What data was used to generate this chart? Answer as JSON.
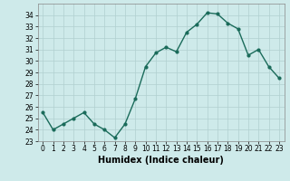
{
  "x": [
    0,
    1,
    2,
    3,
    4,
    5,
    6,
    7,
    8,
    9,
    10,
    11,
    12,
    13,
    14,
    15,
    16,
    17,
    18,
    19,
    20,
    21,
    22,
    23
  ],
  "y": [
    25.5,
    24.0,
    24.5,
    25.0,
    25.5,
    24.5,
    24.0,
    23.3,
    24.5,
    26.7,
    29.5,
    30.7,
    31.2,
    30.8,
    32.5,
    33.2,
    34.2,
    34.1,
    33.3,
    32.8,
    30.5,
    31.0,
    29.5,
    28.5
  ],
  "line_color": "#1a6b5a",
  "marker": "o",
  "markersize": 2.0,
  "linewidth": 1.0,
  "bg_color": "#ceeaea",
  "grid_color": "#b0d0d0",
  "xlabel": "Humidex (Indice chaleur)",
  "ylim": [
    23,
    35
  ],
  "xlim": [
    -0.5,
    23.5
  ],
  "yticks": [
    23,
    24,
    25,
    26,
    27,
    28,
    29,
    30,
    31,
    32,
    33,
    34
  ],
  "xtick_labels": [
    "0",
    "1",
    "2",
    "3",
    "4",
    "5",
    "6",
    "7",
    "8",
    "9",
    "10",
    "11",
    "12",
    "13",
    "14",
    "15",
    "16",
    "17",
    "18",
    "19",
    "20",
    "21",
    "22",
    "23"
  ],
  "tick_fontsize": 5.5,
  "xlabel_fontsize": 7.0,
  "xlabel_fontweight": "bold"
}
